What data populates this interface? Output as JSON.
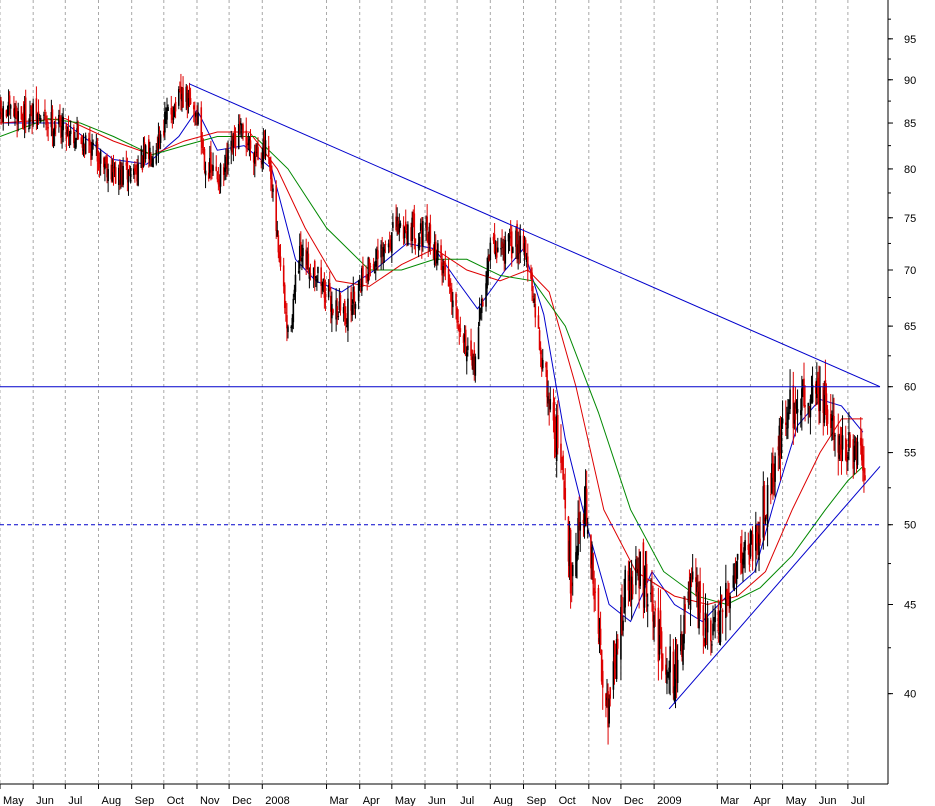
{
  "chart_data": {
    "type": "candlestick",
    "title": "",
    "xlabel": "",
    "ylabel": "",
    "y_scale": "log",
    "ylim": [
      35.5,
      100
    ],
    "x_range": [
      "2007-05-01",
      "2009-07-31"
    ],
    "grid": {
      "vertical": "dashed",
      "horizontal": false
    },
    "y_axis_side": "right",
    "y_ticks": [
      40,
      45,
      50,
      55,
      60,
      65,
      70,
      75,
      80,
      85,
      90,
      95
    ],
    "x_ticks": [
      {
        "label": "May",
        "date": "2007-05-01"
      },
      {
        "label": "Jun",
        "date": "2007-06-01"
      },
      {
        "label": "Jul",
        "date": "2007-07-01"
      },
      {
        "label": "Aug",
        "date": "2007-08-01"
      },
      {
        "label": "Sep",
        "date": "2007-09-01"
      },
      {
        "label": "Oct",
        "date": "2007-10-01"
      },
      {
        "label": "Nov",
        "date": "2007-11-01"
      },
      {
        "label": "Dec",
        "date": "2007-12-01"
      },
      {
        "label": "2008",
        "date": "2008-01-01"
      },
      {
        "label": "Mar",
        "date": "2008-03-01"
      },
      {
        "label": "Apr",
        "date": "2008-04-01"
      },
      {
        "label": "May",
        "date": "2008-05-01"
      },
      {
        "label": "Jun",
        "date": "2008-06-01"
      },
      {
        "label": "Jul",
        "date": "2008-07-01"
      },
      {
        "label": "Aug",
        "date": "2008-08-01"
      },
      {
        "label": "Sep",
        "date": "2008-09-01"
      },
      {
        "label": "Oct",
        "date": "2008-10-01"
      },
      {
        "label": "Nov",
        "date": "2008-11-01"
      },
      {
        "label": "Dec",
        "date": "2008-12-01"
      },
      {
        "label": "2009",
        "date": "2009-01-01"
      },
      {
        "label": "Mar",
        "date": "2009-03-01"
      },
      {
        "label": "Apr",
        "date": "2009-04-01"
      },
      {
        "label": "May",
        "date": "2009-05-01"
      },
      {
        "label": "Jun",
        "date": "2009-06-01"
      },
      {
        "label": "Jul",
        "date": "2009-07-01"
      }
    ],
    "colors": {
      "up": "#000000",
      "down": "#dd0000",
      "trendline": "#0000cc",
      "ma_fast": "#0000cc",
      "ma_mid": "#dd0000",
      "ma_slow": "#008800"
    },
    "price_series": [
      {
        "date": "2007-05-01",
        "close": 86
      },
      {
        "date": "2007-05-20",
        "close": 86
      },
      {
        "date": "2007-06-10",
        "close": 85.5
      },
      {
        "date": "2007-07-01",
        "close": 84.5
      },
      {
        "date": "2007-07-20",
        "close": 83
      },
      {
        "date": "2007-08-05",
        "close": 81
      },
      {
        "date": "2007-08-20",
        "close": 79
      },
      {
        "date": "2007-09-05",
        "close": 80
      },
      {
        "date": "2007-09-20",
        "close": 82
      },
      {
        "date": "2007-10-05",
        "close": 86
      },
      {
        "date": "2007-10-20",
        "close": 88
      },
      {
        "date": "2007-11-01",
        "close": 86
      },
      {
        "date": "2007-11-10",
        "close": 80
      },
      {
        "date": "2007-11-25",
        "close": 79
      },
      {
        "date": "2007-12-10",
        "close": 84
      },
      {
        "date": "2007-12-25",
        "close": 82
      },
      {
        "date": "2008-01-05",
        "close": 82
      },
      {
        "date": "2008-01-15",
        "close": 73
      },
      {
        "date": "2008-01-25",
        "close": 64
      },
      {
        "date": "2008-02-05",
        "close": 71
      },
      {
        "date": "2008-02-20",
        "close": 70
      },
      {
        "date": "2008-03-05",
        "close": 67
      },
      {
        "date": "2008-03-20",
        "close": 66
      },
      {
        "date": "2008-04-05",
        "close": 70
      },
      {
        "date": "2008-04-20",
        "close": 71
      },
      {
        "date": "2008-05-05",
        "close": 74
      },
      {
        "date": "2008-05-20",
        "close": 74
      },
      {
        "date": "2008-06-05",
        "close": 73
      },
      {
        "date": "2008-06-20",
        "close": 70
      },
      {
        "date": "2008-07-05",
        "close": 65
      },
      {
        "date": "2008-07-15",
        "close": 61
      },
      {
        "date": "2008-08-01",
        "close": 72
      },
      {
        "date": "2008-08-15",
        "close": 72
      },
      {
        "date": "2008-09-01",
        "close": 73
      },
      {
        "date": "2008-09-15",
        "close": 64
      },
      {
        "date": "2008-09-25",
        "close": 59
      },
      {
        "date": "2008-10-05",
        "close": 55
      },
      {
        "date": "2008-10-15",
        "close": 47
      },
      {
        "date": "2008-10-28",
        "close": 52
      },
      {
        "date": "2008-11-10",
        "close": 43
      },
      {
        "date": "2008-11-20",
        "close": 39
      },
      {
        "date": "2008-12-05",
        "close": 46
      },
      {
        "date": "2008-12-20",
        "close": 47
      },
      {
        "date": "2009-01-05",
        "close": 43
      },
      {
        "date": "2009-01-20",
        "close": 41
      },
      {
        "date": "2009-02-05",
        "close": 46
      },
      {
        "date": "2009-02-20",
        "close": 43
      },
      {
        "date": "2009-03-05",
        "close": 44
      },
      {
        "date": "2009-03-20",
        "close": 48
      },
      {
        "date": "2009-04-05",
        "close": 49
      },
      {
        "date": "2009-04-20",
        "close": 53
      },
      {
        "date": "2009-05-05",
        "close": 58
      },
      {
        "date": "2009-05-20",
        "close": 59
      },
      {
        "date": "2009-06-01",
        "close": 60
      },
      {
        "date": "2009-06-15",
        "close": 57
      },
      {
        "date": "2009-07-01",
        "close": 55
      },
      {
        "date": "2009-07-15",
        "close": 54
      }
    ],
    "moving_averages": [
      {
        "color": "#0000cc",
        "points": [
          {
            "date": "2007-05-01",
            "y": 85
          },
          {
            "date": "2007-07-01",
            "y": 85
          },
          {
            "date": "2007-08-15",
            "y": 81
          },
          {
            "date": "2007-09-15",
            "y": 80.5
          },
          {
            "date": "2007-10-15",
            "y": 83.5
          },
          {
            "date": "2007-11-01",
            "y": 86.5
          },
          {
            "date": "2007-11-20",
            "y": 82
          },
          {
            "date": "2007-12-15",
            "y": 82.5
          },
          {
            "date": "2008-01-10",
            "y": 80
          },
          {
            "date": "2008-02-01",
            "y": 71
          },
          {
            "date": "2008-02-20",
            "y": 69
          },
          {
            "date": "2008-03-15",
            "y": 68
          },
          {
            "date": "2008-04-15",
            "y": 70
          },
          {
            "date": "2008-05-15",
            "y": 72.5
          },
          {
            "date": "2008-06-10",
            "y": 72
          },
          {
            "date": "2008-07-01",
            "y": 69
          },
          {
            "date": "2008-07-20",
            "y": 66.5
          },
          {
            "date": "2008-08-15",
            "y": 70
          },
          {
            "date": "2008-09-01",
            "y": 72
          },
          {
            "date": "2008-09-20",
            "y": 66
          },
          {
            "date": "2008-10-10",
            "y": 56
          },
          {
            "date": "2008-10-30",
            "y": 50
          },
          {
            "date": "2008-11-20",
            "y": 45
          },
          {
            "date": "2008-12-10",
            "y": 44
          },
          {
            "date": "2008-12-30",
            "y": 47
          },
          {
            "date": "2009-01-20",
            "y": 45
          },
          {
            "date": "2009-02-15",
            "y": 44
          },
          {
            "date": "2009-03-10",
            "y": 45.5
          },
          {
            "date": "2009-04-05",
            "y": 47
          },
          {
            "date": "2009-04-25",
            "y": 52
          },
          {
            "date": "2009-05-15",
            "y": 57
          },
          {
            "date": "2009-06-05",
            "y": 59
          },
          {
            "date": "2009-06-25",
            "y": 58.5
          },
          {
            "date": "2009-07-15",
            "y": 56.5
          }
        ]
      },
      {
        "color": "#dd0000",
        "points": [
          {
            "date": "2007-05-01",
            "y": 85
          },
          {
            "date": "2007-07-01",
            "y": 85.5
          },
          {
            "date": "2007-08-15",
            "y": 83
          },
          {
            "date": "2007-09-20",
            "y": 81.5
          },
          {
            "date": "2007-10-20",
            "y": 83
          },
          {
            "date": "2007-11-20",
            "y": 84
          },
          {
            "date": "2007-12-20",
            "y": 84
          },
          {
            "date": "2008-01-15",
            "y": 80
          },
          {
            "date": "2008-02-10",
            "y": 74
          },
          {
            "date": "2008-03-10",
            "y": 69
          },
          {
            "date": "2008-04-10",
            "y": 68.5
          },
          {
            "date": "2008-05-10",
            "y": 70.5
          },
          {
            "date": "2008-06-10",
            "y": 72
          },
          {
            "date": "2008-07-10",
            "y": 70
          },
          {
            "date": "2008-08-10",
            "y": 69
          },
          {
            "date": "2008-09-05",
            "y": 70
          },
          {
            "date": "2008-09-25",
            "y": 68
          },
          {
            "date": "2008-10-20",
            "y": 60
          },
          {
            "date": "2008-11-15",
            "y": 51
          },
          {
            "date": "2008-12-15",
            "y": 47
          },
          {
            "date": "2009-01-20",
            "y": 45.5
          },
          {
            "date": "2009-02-20",
            "y": 45
          },
          {
            "date": "2009-03-20",
            "y": 45.5
          },
          {
            "date": "2009-04-15",
            "y": 47
          },
          {
            "date": "2009-05-10",
            "y": 51
          },
          {
            "date": "2009-06-05",
            "y": 55
          },
          {
            "date": "2009-06-25",
            "y": 57.5
          },
          {
            "date": "2009-07-15",
            "y": 57.5
          }
        ]
      },
      {
        "color": "#008800",
        "points": [
          {
            "date": "2007-05-01",
            "y": 83.5
          },
          {
            "date": "2007-06-15",
            "y": 85.5
          },
          {
            "date": "2007-07-15",
            "y": 85
          },
          {
            "date": "2007-08-15",
            "y": 83.5
          },
          {
            "date": "2007-09-20",
            "y": 81.5
          },
          {
            "date": "2007-10-20",
            "y": 82.5
          },
          {
            "date": "2007-11-20",
            "y": 83.5
          },
          {
            "date": "2007-12-25",
            "y": 83.5
          },
          {
            "date": "2008-01-25",
            "y": 80
          },
          {
            "date": "2008-03-01",
            "y": 74
          },
          {
            "date": "2008-04-10",
            "y": 70
          },
          {
            "date": "2008-05-10",
            "y": 70
          },
          {
            "date": "2008-06-10",
            "y": 71
          },
          {
            "date": "2008-07-10",
            "y": 71
          },
          {
            "date": "2008-08-10",
            "y": 69.5
          },
          {
            "date": "2008-09-10",
            "y": 69
          },
          {
            "date": "2008-10-10",
            "y": 65
          },
          {
            "date": "2008-11-10",
            "y": 58
          },
          {
            "date": "2008-12-10",
            "y": 51
          },
          {
            "date": "2009-01-10",
            "y": 47
          },
          {
            "date": "2009-02-10",
            "y": 45.5
          },
          {
            "date": "2009-03-10",
            "y": 45
          },
          {
            "date": "2009-04-10",
            "y": 46
          },
          {
            "date": "2009-05-10",
            "y": 48
          },
          {
            "date": "2009-06-10",
            "y": 51
          },
          {
            "date": "2009-07-01",
            "y": 53
          },
          {
            "date": "2009-07-15",
            "y": 54
          }
        ]
      }
    ],
    "trendlines": [
      {
        "style": "solid",
        "from": {
          "date": "2007-10-25",
          "y": 89.5
        },
        "to": {
          "date": "2009-07-31",
          "y": 60
        }
      },
      {
        "style": "solid",
        "from": {
          "date": "2009-01-15",
          "y": 39.2
        },
        "to": {
          "date": "2009-07-31",
          "y": 54
        }
      },
      {
        "style": "solid",
        "from": {
          "date": "2007-05-01",
          "y": 60
        },
        "to": {
          "date": "2009-07-31",
          "y": 60
        }
      },
      {
        "style": "dashed",
        "from": {
          "date": "2007-05-01",
          "y": 50
        },
        "to": {
          "date": "2009-07-31",
          "y": 50
        }
      }
    ]
  }
}
